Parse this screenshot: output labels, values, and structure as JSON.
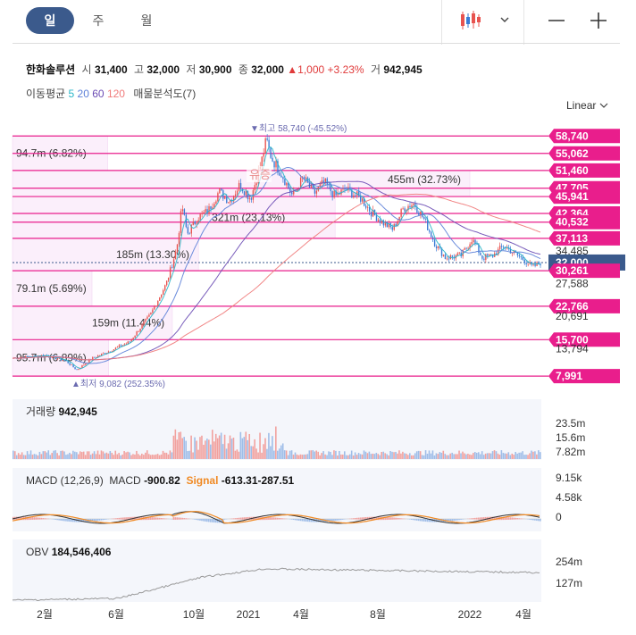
{
  "tabs": [
    {
      "label": "일",
      "active": true
    },
    {
      "label": "주",
      "active": false
    },
    {
      "label": "월",
      "active": false
    }
  ],
  "toolbar": {
    "chart_type_icon": "candlestick-icon",
    "dropdown_icon": "chevron-down-icon",
    "zoom_out_icon": "minus-icon",
    "zoom_in_icon": "plus-icon"
  },
  "quote": {
    "name": "한화솔루션",
    "open_label": "시",
    "open": "31,400",
    "high_label": "고",
    "high": "32,000",
    "low_label": "저",
    "low": "30,900",
    "close_label": "종",
    "close": "32,000",
    "change": "▲1,000",
    "change_pct": "+3.23%",
    "volume_label": "거",
    "volume": "942,945"
  },
  "moving_average": {
    "label": "이동평균",
    "periods": [
      "5",
      "20",
      "60",
      "120"
    ],
    "colors": [
      "#29b6c8",
      "#5b7fd8",
      "#6a4bb4",
      "#f07a7a"
    ],
    "volume_profile_label": "매물분석도(7)"
  },
  "scale_mode": "Linear",
  "colors": {
    "up": "#e8534f",
    "down": "#3a7bd5",
    "pink": "#e91e8c",
    "band": "#fbeffb",
    "current": "#3b5a8c"
  },
  "chart_data": {
    "type": "candlestick",
    "price_axis": {
      "min": 5000,
      "max": 62000,
      "tick_labels": [
        {
          "value": 58740,
          "text": "58,740",
          "style": "level"
        },
        {
          "value": 55062,
          "text": "55,062",
          "style": "level"
        },
        {
          "value": 51460,
          "text": "51,460",
          "style": "level"
        },
        {
          "value": 47705,
          "text": "47,705",
          "style": "level"
        },
        {
          "value": 45941,
          "text": "45,941",
          "style": "level"
        },
        {
          "value": 42364,
          "text": "42,364",
          "style": "level"
        },
        {
          "value": 40532,
          "text": "40,532",
          "style": "level"
        },
        {
          "value": 37113,
          "text": "37,113",
          "style": "level"
        },
        {
          "value": 34485,
          "text": "34,485",
          "style": "plain"
        },
        {
          "value": 32000,
          "text": "32,000",
          "style": "current"
        },
        {
          "value": 30261,
          "text": "30,261",
          "style": "level"
        },
        {
          "value": 27588,
          "text": "27,588",
          "style": "plain"
        },
        {
          "value": 22766,
          "text": "22,766",
          "style": "level"
        },
        {
          "value": 20691,
          "text": "20,691",
          "style": "plain"
        },
        {
          "value": 15700,
          "text": "15,700",
          "style": "level"
        },
        {
          "value": 13794,
          "text": "13,794",
          "style": "plain"
        },
        {
          "value": 7991,
          "text": "7,991",
          "style": "level"
        }
      ]
    },
    "volume_profile": [
      {
        "low": 51460,
        "high": 58740,
        "text": "94.7m (6.82%)"
      },
      {
        "low": 45941,
        "high": 51460,
        "text": "455m (32.73%)"
      },
      {
        "low": 37113,
        "high": 45941,
        "text": "321m (23.13%)"
      },
      {
        "low": 30261,
        "high": 37113,
        "text": "185m (13.30%)"
      },
      {
        "low": 22766,
        "high": 30261,
        "text": "79.1m (5.69%)"
      },
      {
        "low": 15700,
        "high": 22766,
        "text": "159m (11.44%)"
      },
      {
        "low": 7991,
        "high": 15700,
        "text": "95.7m (6.89%)"
      }
    ],
    "annotations": {
      "high": "▼최고 58,740 (-45.52%)",
      "low": "▲최저 9,082 (252.35%)",
      "event": "유증"
    },
    "x_ticks": [
      "2월",
      "6월",
      "10월",
      "2021",
      "4월",
      "8월",
      "2022",
      "4월"
    ],
    "price_keypoints": [
      [
        0,
        11800
      ],
      [
        0.06,
        12400
      ],
      [
        0.1,
        11200
      ],
      [
        0.12,
        9300
      ],
      [
        0.15,
        11800
      ],
      [
        0.18,
        13200
      ],
      [
        0.22,
        15200
      ],
      [
        0.26,
        21000
      ],
      [
        0.29,
        27500
      ],
      [
        0.31,
        35000
      ],
      [
        0.32,
        44000
      ],
      [
        0.33,
        38000
      ],
      [
        0.35,
        41500
      ],
      [
        0.37,
        43000
      ],
      [
        0.39,
        47000
      ],
      [
        0.41,
        45000
      ],
      [
        0.43,
        48500
      ],
      [
        0.45,
        45500
      ],
      [
        0.47,
        53000
      ],
      [
        0.48,
        58000
      ],
      [
        0.49,
        54000
      ],
      [
        0.51,
        50500
      ],
      [
        0.53,
        46000
      ],
      [
        0.55,
        50000
      ],
      [
        0.57,
        46500
      ],
      [
        0.59,
        49000
      ],
      [
        0.61,
        46000
      ],
      [
        0.63,
        47500
      ],
      [
        0.66,
        45500
      ],
      [
        0.68,
        42500
      ],
      [
        0.7,
        40500
      ],
      [
        0.72,
        39000
      ],
      [
        0.74,
        43500
      ],
      [
        0.76,
        44500
      ],
      [
        0.78,
        41000
      ],
      [
        0.8,
        36000
      ],
      [
        0.82,
        33000
      ],
      [
        0.85,
        33500
      ],
      [
        0.87,
        37000
      ],
      [
        0.89,
        33000
      ],
      [
        0.91,
        33500
      ],
      [
        0.93,
        35500
      ],
      [
        0.95,
        34000
      ],
      [
        0.97,
        32500
      ],
      [
        0.985,
        31000
      ],
      [
        1.0,
        32000
      ]
    ],
    "volume": {
      "label": "거래량",
      "last": "942,945",
      "axis_labels": [
        "23.5m",
        "15.6m",
        "7.82m"
      ]
    },
    "macd": {
      "label": "MACD (12,26,9)",
      "macd_label": "MACD",
      "macd_value": "-900.82",
      "signal_label": "Signal",
      "signal_value": "-613.31",
      "hist_value": "-287.51",
      "axis_labels": [
        "9.15k",
        "4.58k",
        "0"
      ],
      "macd_color": "#333333",
      "signal_color": "#f08a24"
    },
    "obv": {
      "label": "OBV",
      "value": "184,546,406",
      "axis_labels": [
        "254m",
        "127m"
      ]
    }
  }
}
